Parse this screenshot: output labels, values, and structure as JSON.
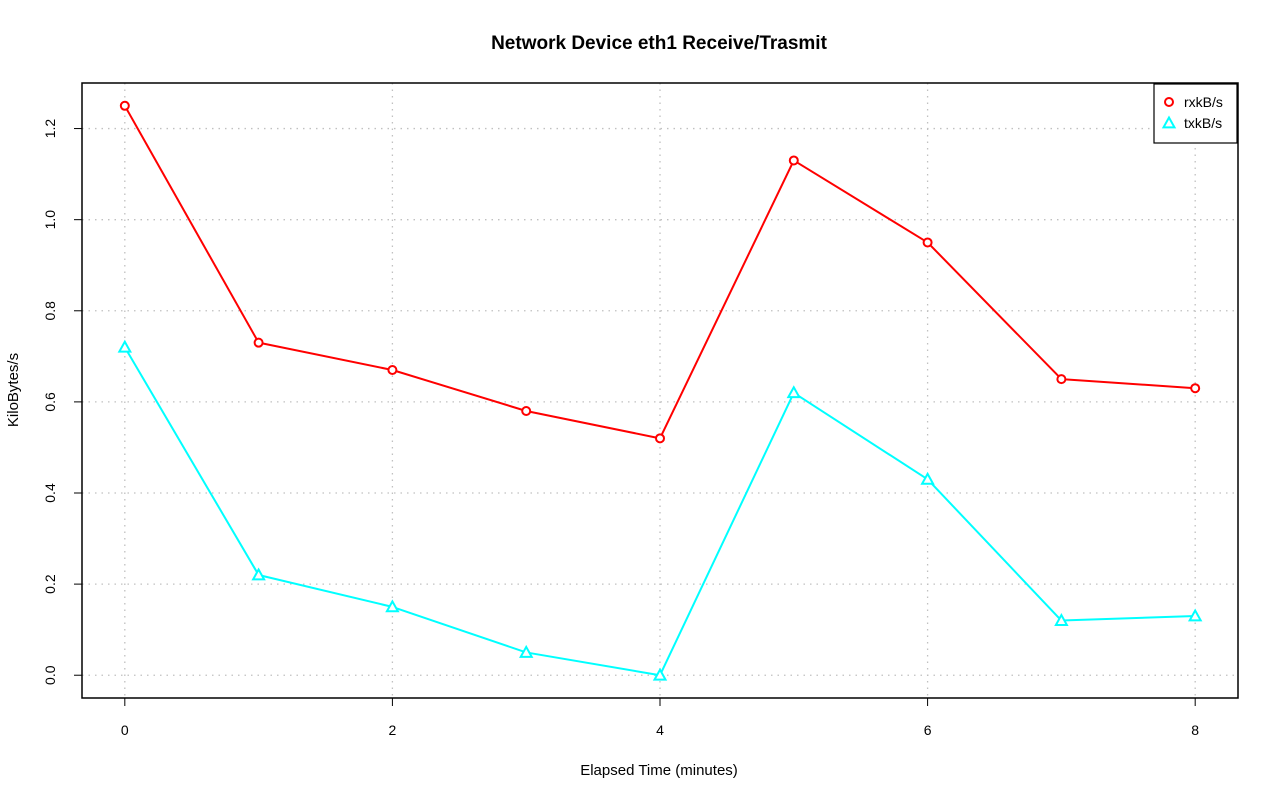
{
  "chart_data": {
    "type": "line",
    "title": "Network Device eth1 Receive/Trasmit",
    "xlabel": "Elapsed Time (minutes)",
    "ylabel": "KiloBytes/s",
    "x": [
      0,
      1,
      2,
      3,
      4,
      5,
      6,
      7,
      8
    ],
    "xlim": [
      -0.32,
      8.32
    ],
    "ylim": [
      -0.05,
      1.3
    ],
    "xticks": [
      0,
      2,
      4,
      6,
      8
    ],
    "yticks": [
      0.0,
      0.2,
      0.4,
      0.6,
      0.8,
      1.0,
      1.2
    ],
    "ytick_labels": [
      "0.0",
      "0.2",
      "0.4",
      "0.6",
      "0.8",
      "1.0",
      "1.2"
    ],
    "grid": true,
    "legend_position": "top-right",
    "series": [
      {
        "name": "rxkB/s",
        "color": "#ff0000",
        "marker": "circle",
        "values": [
          1.25,
          0.73,
          0.67,
          0.58,
          0.52,
          1.13,
          0.95,
          0.65,
          0.63
        ]
      },
      {
        "name": "txkB/s",
        "color": "#00ffff",
        "marker": "triangle",
        "values": [
          0.72,
          0.22,
          0.15,
          0.05,
          0.0,
          0.62,
          0.43,
          0.12,
          0.13
        ]
      }
    ]
  }
}
